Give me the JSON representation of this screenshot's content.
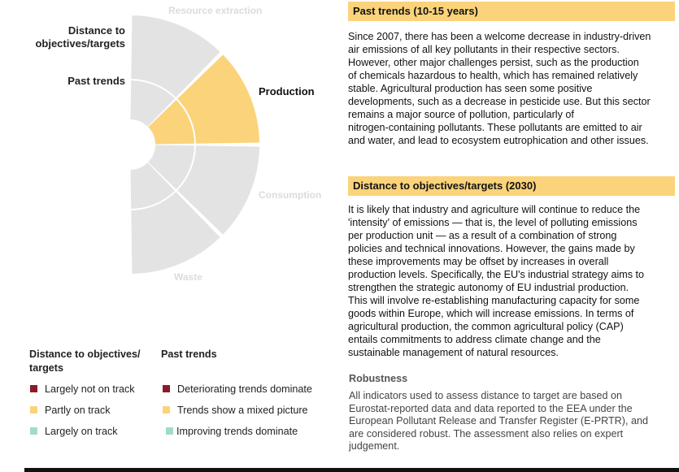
{
  "diagram": {
    "ring_labels": {
      "outer": "Distance to objectives/targets",
      "inner": "Past trends"
    },
    "sectors": [
      {
        "name": "Resource extraction",
        "active": false
      },
      {
        "name": "Production",
        "active": true
      },
      {
        "name": "Consumption",
        "active": false
      },
      {
        "name": "Waste",
        "active": false
      }
    ],
    "assessment": {
      "sector": "Production",
      "distance_to_target": "Partly on track",
      "past_trends": "Trends show a mixed picture"
    },
    "colors": {
      "inactive": "#e3e3e3",
      "partly": "#fbd37a",
      "not_on_track": "#8b1a2b",
      "on_track": "#a3dcc6"
    }
  },
  "legend": {
    "distance_heading": "Distance to objectives/ targets",
    "trends_heading": "Past trends",
    "distance_items": [
      {
        "label": "Largely not on track",
        "color": "#8b1a2b"
      },
      {
        "label": "Partly on track",
        "color": "#fbd37a"
      },
      {
        "label": "Largely on track",
        "color": "#a3dcc6"
      }
    ],
    "trend_items": [
      {
        "label": "Deteriorating trends dominate",
        "color": "#8b1a2b"
      },
      {
        "label": "Trends show a mixed picture",
        "color": "#fbd37a"
      },
      {
        "label": "Improving trends dominate",
        "color": "#a3dcc6"
      }
    ]
  },
  "past_trends": {
    "heading": "Past trends (10-15 years)",
    "lines": [
      "Since 2007, there has been a welcome decrease in industry-driven",
      "air emissions of all key pollutants in their respective sectors.",
      "However, other major challenges persist, such as the production",
      "of chemicals hazardous to health, which has remained relatively",
      "stable. Agricultural production has seen some positive",
      "developments, such as a decrease in pesticide use. But this sector",
      "remains a major source of pollution, particularly of",
      "nitrogen-containing pollutants. These pollutants are emitted to air",
      "and water, and lead to ecosystem eutrophication and other issues."
    ]
  },
  "distance": {
    "heading": "Distance to objectives/targets (2030)",
    "lines": [
      "It is likely that industry and agriculture will continue to reduce the",
      "'intensity' of emissions — that is, the level of polluting emissions",
      "per production unit — as a result of a combination of strong",
      "policies and technical innovations. However, the gains made by",
      "these improvements may be offset by increases in overall",
      "production levels. Specifically, the EU's industrial strategy aims to",
      "strengthen the strategic autonomy of EU industrial production.",
      "This will involve re-establishing manufacturing capacity for some",
      "goods within Europe, which will increase emissions. In terms of",
      "agricultural production, the common agricultural policy (CAP)",
      "entails commitments to address climate change and the",
      "sustainable management of natural resources."
    ]
  },
  "robustness": {
    "heading": "Robustness",
    "lines": [
      "All indicators used to assess distance to target are based on",
      "Eurostat-reported data and data reported to the EEA under the",
      "European Pollutant Release and Transfer Register (E-PRTR), and",
      "are considered robust. The assessment also relies on expert",
      "judgement."
    ]
  }
}
